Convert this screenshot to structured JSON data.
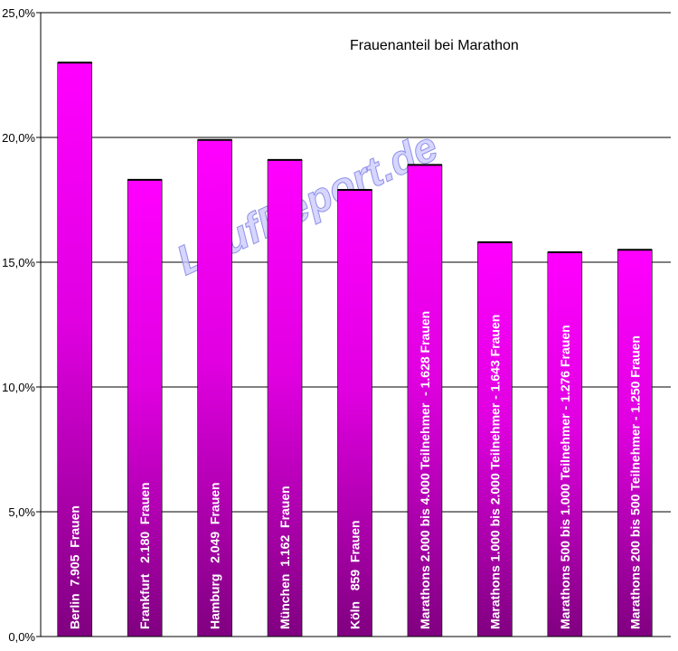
{
  "chart_data": {
    "type": "bar",
    "title": "Frauenanteil bei Marathon",
    "watermark": "LaufReport.de",
    "xlabel": "",
    "ylabel": "",
    "ylim": [
      0,
      25
    ],
    "yticks": [
      0,
      5,
      10,
      15,
      20,
      25
    ],
    "ytick_labels": [
      "0,0%",
      "5,0%",
      "10,0%",
      "15,0%",
      "20,0%",
      "25,0%"
    ],
    "grid": true,
    "legend": "none",
    "bar_color_top": "#ff00ff",
    "bar_color_bottom": "#800080",
    "categories": [
      "Berlin  7.905  Frauen",
      "Frankfurt   2.180  Frauen",
      "Hamburg   2.049  Frauen",
      "München  1.162  Frauen",
      "Köln   859  Frauen",
      "Marathons 2.000 bis 4.000 Teilnehmer  - 1.628 Frauen",
      "Marathons 1.000 bis 2.000 Teilnehmer - 1.643 Frauen",
      "Marathons 500 bis 1.000 Teilnehmer - 1.276 Frauen",
      "Marathons 200 bis 500 Teilnehmer - 1.250 Frauen"
    ],
    "values": [
      23.0,
      18.3,
      19.9,
      19.1,
      17.9,
      18.9,
      15.8,
      15.4,
      15.5
    ]
  }
}
